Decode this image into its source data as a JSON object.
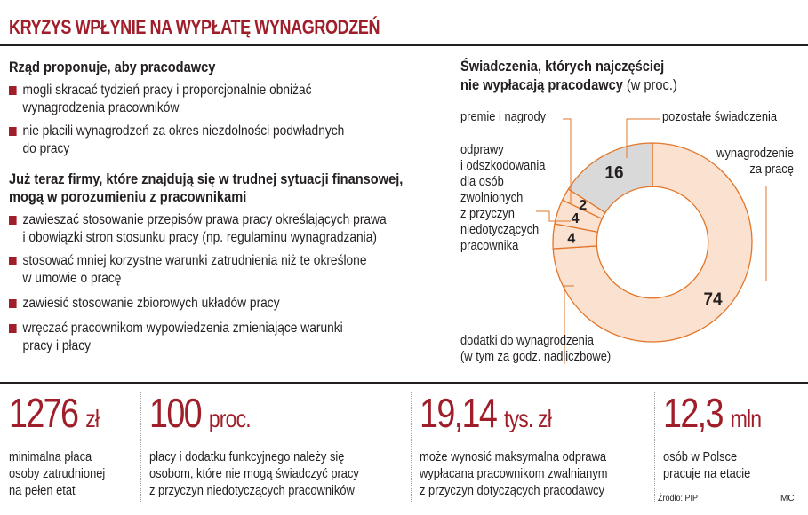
{
  "title": "KRYZYS WPŁYNIE NA WYPŁATĘ WYNAGRODZEŃ",
  "left": {
    "section1": {
      "heading": "Rząd proponuje, aby pracodawcy",
      "items": [
        {
          "lines": [
            "mogli skracać tydzień pracy i proporcjonalnie obniżać",
            "wynagrodzenia pracowników"
          ]
        },
        {
          "lines": [
            "nie płacili wynagrodzeń za okres niezdolności podwładnych",
            "do pracy"
          ]
        }
      ]
    },
    "section2": {
      "heading_lines": [
        "Już teraz firmy, które znajdują się w trudnej sytuacji finansowej,",
        "mogą w porozumieniu z pracownikami"
      ],
      "items": [
        {
          "lines": [
            "zawieszać stosowanie przepisów prawa pracy określających prawa",
            "i obowiązki stron stosunku pracy (np. regulaminu wynagradzania)"
          ]
        },
        {
          "lines": [
            "stosować mniej korzystne warunki zatrudnienia niż te określone",
            "w umowie o pracę"
          ]
        },
        {
          "lines": [
            "zawiesić stosowanie zbiorowych układów pracy"
          ]
        },
        {
          "lines": [
            "wręczać pracownikom wypowiedzenia zmieniające warunki",
            "pracy i płacy"
          ]
        }
      ]
    }
  },
  "chart_data": {
    "type": "pie",
    "title_lines": [
      "Świadczenia, których najczęściej",
      "nie wypłacają pracodawcy"
    ],
    "unit": "(w proc.)",
    "slices": [
      {
        "label": "wynagrodzenie za pracę",
        "label_lines": [
          "wynagrodzenie",
          "za pracę"
        ],
        "value": 74,
        "value_label": "74",
        "color": "#fbe1cf"
      },
      {
        "label": "dodatki do wynagrodzenia (w tym za godz. nadliczbowe)",
        "label_lines": [
          "dodatki do wynagrodzenia",
          "(w tym za godz. nadliczbowe)"
        ],
        "value": 4,
        "value_label": "4",
        "color": "#fbe1cf"
      },
      {
        "label": "odprawy i odszkodowania dla osób zwolnionych z przyczyn niedotyczących pracownika",
        "label_lines": [
          "odprawy",
          "i odszkodowania",
          "dla osób",
          "zwolnionych",
          "z przyczyn",
          "niedotyczących",
          "pracownika"
        ],
        "value": 4,
        "value_label": "4",
        "color": "#fbe1cf"
      },
      {
        "label": "premie i nagrody",
        "label_lines": [
          "premie i nagrody"
        ],
        "value": 2,
        "value_label": "2",
        "color": "#fbe1cf"
      },
      {
        "label": "pozostałe świadczenia",
        "label_lines": [
          "pozostałe świadczenia"
        ],
        "value": 16,
        "value_label": "16",
        "color": "#d9d9d9"
      }
    ],
    "inner_radius_ratio": 0.56,
    "accent": "#a01e2a",
    "stroke": "#e2762a"
  },
  "facts": [
    {
      "number": "1276",
      "unit": "zł",
      "lines": [
        "minimalna płaca",
        "osoby zatrudnionej",
        "na pełen etat"
      ]
    },
    {
      "number": "100",
      "unit": "proc.",
      "lines": [
        "płacy i dodatku funkcyjnego należy się",
        "osobom, które nie mogą świadczyć pracy",
        "z przyczyn niedotyczących pracowników"
      ]
    },
    {
      "number": "19,14",
      "unit": "tys. zł",
      "lines": [
        "może wynosić maksymalna odprawa",
        "wypłacana pracownikom zwalnianym",
        "z przyczyn dotyczących pracodawcy"
      ]
    },
    {
      "number": "12,3",
      "unit": "mln",
      "lines": [
        "osób w Polsce",
        "pracuje na etacie"
      ]
    }
  ],
  "source": "Źródło: PIP",
  "credit": "MC"
}
